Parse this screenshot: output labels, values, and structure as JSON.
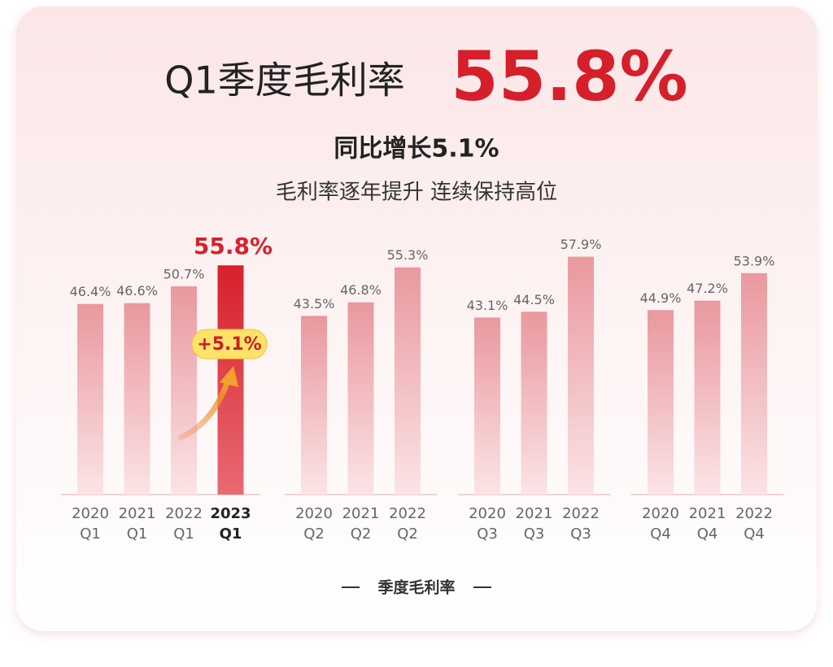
{
  "chart_data": {
    "type": "bar",
    "title": "Q1季度毛利率",
    "highlight_text": "55.8%",
    "subtitle": "同比增长5.1%",
    "tagline": "毛利率逐年提升 连续保持高位",
    "annotation": "+5.1%",
    "legend": "季度毛利率",
    "color": "#eba3a8",
    "highlight_color": "#d8202c",
    "groups": [
      {
        "categories": [
          [
            "2020",
            "Q1"
          ],
          [
            "2021",
            "Q1"
          ],
          [
            "2022",
            "Q1"
          ],
          [
            "2023",
            "Q1"
          ]
        ],
        "values": [
          46.4,
          46.6,
          50.7,
          55.8
        ],
        "value_labels": [
          "46.4%",
          "46.6%",
          "50.7%",
          "55.8%"
        ],
        "highlight_index": 3
      },
      {
        "categories": [
          [
            "2020",
            "Q2"
          ],
          [
            "2021",
            "Q2"
          ],
          [
            "2022",
            "Q2"
          ]
        ],
        "values": [
          43.5,
          46.8,
          55.3
        ],
        "value_labels": [
          "43.5%",
          "46.8%",
          "55.3%"
        ]
      },
      {
        "categories": [
          [
            "2020",
            "Q3"
          ],
          [
            "2021",
            "Q3"
          ],
          [
            "2022",
            "Q3"
          ]
        ],
        "values": [
          43.1,
          44.5,
          57.9
        ],
        "value_labels": [
          "43.1%",
          "44.5%",
          "57.9%"
        ]
      },
      {
        "categories": [
          [
            "2020",
            "Q4"
          ],
          [
            "2021",
            "Q4"
          ],
          [
            "2022",
            "Q4"
          ]
        ],
        "values": [
          44.9,
          47.2,
          53.9
        ],
        "value_labels": [
          "44.9%",
          "47.2%",
          "53.9%"
        ]
      }
    ]
  }
}
